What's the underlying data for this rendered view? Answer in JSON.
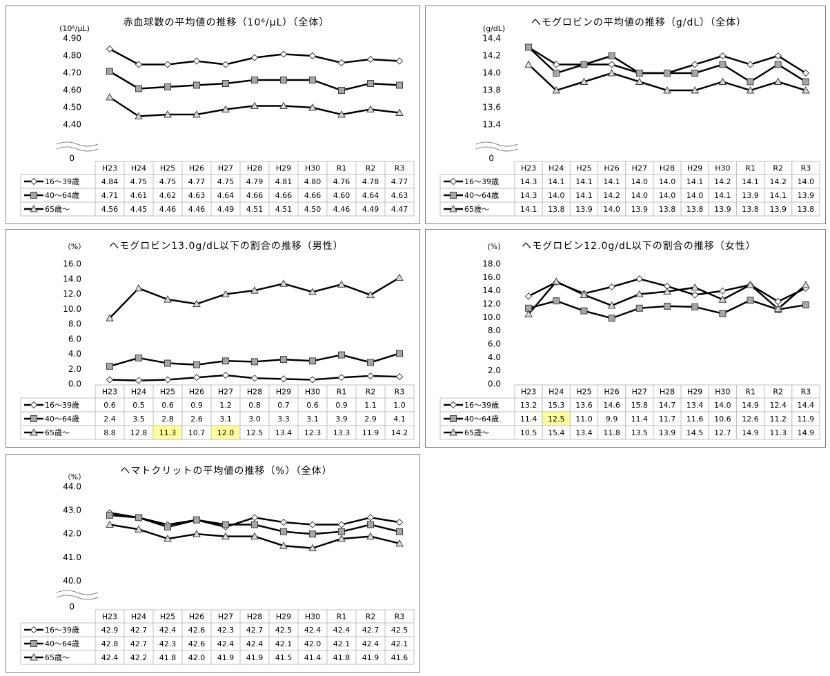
{
  "chart_data": [
    {
      "type": "line",
      "title": "赤血球数の平均値の推移（10⁶/μL）（全体）",
      "y_label": "(10⁶/μL)",
      "categories": [
        "H23",
        "H24",
        "H25",
        "H26",
        "H27",
        "H28",
        "H29",
        "H30",
        "R1",
        "R2",
        "R3"
      ],
      "ylim": [
        4.3,
        4.9
      ],
      "yticks": [
        {
          "value": 4.4,
          "label": "4.40"
        },
        {
          "value": 4.5,
          "label": "4.50"
        },
        {
          "value": 4.6,
          "label": "4.60"
        },
        {
          "value": 4.7,
          "label": "4.70"
        },
        {
          "value": 4.8,
          "label": "4.80"
        },
        {
          "value": 4.9,
          "label": "4.90"
        }
      ],
      "axis_break_tick": 0,
      "series": [
        {
          "name": "16～39歳",
          "color": "#000000",
          "marker": "diamond",
          "marker_fill": "#ffffff",
          "values": [
            4.84,
            4.75,
            4.75,
            4.77,
            4.75,
            4.79,
            4.81,
            4.8,
            4.76,
            4.78,
            4.77
          ],
          "value_labels": [
            "4.84",
            "4.75",
            "4.75",
            "4.77",
            "4.75",
            "4.79",
            "4.81",
            "4.80",
            "4.76",
            "4.78",
            "4.77"
          ]
        },
        {
          "name": "40～64歳",
          "color": "#000000",
          "marker": "square",
          "marker_fill": "#a6a6a6",
          "values": [
            4.71,
            4.61,
            4.62,
            4.63,
            4.64,
            4.66,
            4.66,
            4.66,
            4.6,
            4.64,
            4.63
          ],
          "value_labels": [
            "4.71",
            "4.61",
            "4.62",
            "4.63",
            "4.64",
            "4.66",
            "4.66",
            "4.66",
            "4.60",
            "4.64",
            "4.63"
          ]
        },
        {
          "name": "65歳～",
          "color": "#000000",
          "marker": "triangle",
          "marker_fill": "#d9d9d9",
          "values": [
            4.56,
            4.45,
            4.46,
            4.46,
            4.49,
            4.51,
            4.51,
            4.5,
            4.46,
            4.49,
            4.47
          ],
          "value_labels": [
            "4.56",
            "4.45",
            "4.46",
            "4.46",
            "4.49",
            "4.51",
            "4.51",
            "4.50",
            "4.46",
            "4.49",
            "4.47"
          ]
        }
      ]
    },
    {
      "type": "line",
      "title": "ヘモグロビンの平均値の推移（g/dL）（全体）",
      "y_label": "(g/dL)",
      "categories": [
        "H23",
        "H24",
        "H25",
        "H26",
        "H27",
        "H28",
        "H29",
        "H30",
        "R1",
        "R2",
        "R3"
      ],
      "ylim": [
        13.2,
        14.4
      ],
      "yticks": [
        13.4,
        13.6,
        13.8,
        {
          "value": 14,
          "label": "14.0"
        },
        14.2,
        14.4
      ],
      "axis_break_tick": 0,
      "series": [
        {
          "name": "16～39歳",
          "color": "#000000",
          "marker": "diamond",
          "marker_fill": "#ffffff",
          "values": [
            14.3,
            14.1,
            14.1,
            14.1,
            14,
            14,
            14.1,
            14.2,
            14.1,
            14.2,
            14
          ],
          "value_labels": [
            "14.3",
            "14.1",
            "14.1",
            "14.1",
            "14.0",
            "14.0",
            "14.1",
            "14.2",
            "14.1",
            "14.2",
            "14.0"
          ]
        },
        {
          "name": "40～64歳",
          "color": "#000000",
          "marker": "square",
          "marker_fill": "#a6a6a6",
          "values": [
            14.3,
            14,
            14.1,
            14.2,
            14,
            14,
            14,
            14.1,
            13.9,
            14.1,
            13.9
          ],
          "value_labels": [
            "14.3",
            "14.0",
            "14.1",
            "14.2",
            "14.0",
            "14.0",
            "14.0",
            "14.1",
            "13.9",
            "14.1",
            "13.9"
          ]
        },
        {
          "name": "65歳～",
          "color": "#000000",
          "marker": "triangle",
          "marker_fill": "#d9d9d9",
          "values": [
            14.1,
            13.8,
            13.9,
            14,
            13.9,
            13.8,
            13.8,
            13.9,
            13.8,
            13.9,
            13.8
          ],
          "value_labels": [
            "14.1",
            "13.8",
            "13.9",
            "14.0",
            "13.9",
            "13.8",
            "13.8",
            "13.9",
            "13.8",
            "13.9",
            "13.8"
          ]
        }
      ]
    },
    {
      "type": "line",
      "title": "ヘモグロビン13.0g/dL以下の割合の推移（男性）",
      "y_label": "（%）",
      "categories": [
        "H23",
        "H24",
        "H25",
        "H26",
        "H27",
        "H28",
        "H29",
        "H30",
        "R1",
        "R2",
        "R3"
      ],
      "ylim": [
        0,
        16
      ],
      "yticks": [
        {
          "value": 0,
          "label": "0.0"
        },
        {
          "value": 2,
          "label": "2.0"
        },
        {
          "value": 4,
          "label": "4.0"
        },
        {
          "value": 6,
          "label": "6.0"
        },
        {
          "value": 8,
          "label": "8.0"
        },
        {
          "value": 10,
          "label": "10.0"
        },
        {
          "value": 12,
          "label": "12.0"
        },
        {
          "value": 14,
          "label": "14.0"
        },
        {
          "value": 16,
          "label": "16.0"
        }
      ],
      "highlighted_cells": [
        [
          2,
          2
        ],
        [
          2,
          4
        ]
      ],
      "highlight_color": "#ffff99",
      "series": [
        {
          "name": "16～39歳",
          "color": "#000000",
          "marker": "diamond",
          "marker_fill": "#ffffff",
          "values": [
            0.6,
            0.5,
            0.6,
            0.9,
            1.2,
            0.8,
            0.7,
            0.6,
            0.9,
            1.1,
            1
          ],
          "value_labels": [
            "0.6",
            "0.5",
            "0.6",
            "0.9",
            "1.2",
            "0.8",
            "0.7",
            "0.6",
            "0.9",
            "1.1",
            "1.0"
          ]
        },
        {
          "name": "40～64歳",
          "color": "#000000",
          "marker": "square",
          "marker_fill": "#a6a6a6",
          "values": [
            2.4,
            3.5,
            2.8,
            2.6,
            3.1,
            3,
            3.3,
            3.1,
            3.9,
            2.9,
            4.1
          ],
          "value_labels": [
            "2.4",
            "3.5",
            "2.8",
            "2.6",
            "3.1",
            "3.0",
            "3.3",
            "3.1",
            "3.9",
            "2.9",
            "4.1"
          ]
        },
        {
          "name": "65歳～",
          "color": "#000000",
          "marker": "triangle",
          "marker_fill": "#d9d9d9",
          "values": [
            8.8,
            12.8,
            11.3,
            10.7,
            12,
            12.5,
            13.4,
            12.3,
            13.3,
            11.9,
            14.2
          ],
          "value_labels": [
            "8.8",
            "12.8",
            "11.3",
            "10.7",
            "12.0",
            "12.5",
            "13.4",
            "12.3",
            "13.3",
            "11.9",
            "14.2"
          ]
        }
      ]
    },
    {
      "type": "line",
      "title": "ヘモグロビン12.0g/dL以下の割合の推移（女性）",
      "y_label": "(%)",
      "categories": [
        "H23",
        "H24",
        "H25",
        "H26",
        "H27",
        "H28",
        "H29",
        "H30",
        "R1",
        "R2",
        "R3"
      ],
      "ylim": [
        0,
        18
      ],
      "yticks": [
        {
          "value": 0,
          "label": "0.0"
        },
        {
          "value": 2,
          "label": "2.0"
        },
        {
          "value": 4,
          "label": "4.0"
        },
        {
          "value": 6,
          "label": "6.0"
        },
        {
          "value": 8,
          "label": "8.0"
        },
        {
          "value": 10,
          "label": "10.0"
        },
        {
          "value": 12,
          "label": "12.0"
        },
        {
          "value": 14,
          "label": "14.0"
        },
        {
          "value": 16,
          "label": "16.0"
        },
        {
          "value": 18,
          "label": "18.0"
        }
      ],
      "highlighted_cells": [
        [
          1,
          1
        ]
      ],
      "highlight_color": "#ffff99",
      "series": [
        {
          "name": "16～39歳",
          "color": "#000000",
          "marker": "diamond",
          "marker_fill": "#ffffff",
          "values": [
            13.2,
            15.3,
            13.6,
            14.6,
            15.8,
            14.7,
            13.4,
            14,
            14.9,
            12.4,
            14.4
          ],
          "value_labels": [
            "13.2",
            "15.3",
            "13.6",
            "14.6",
            "15.8",
            "14.7",
            "13.4",
            "14.0",
            "14.9",
            "12.4",
            "14.4"
          ]
        },
        {
          "name": "40～64歳",
          "color": "#000000",
          "marker": "square",
          "marker_fill": "#a6a6a6",
          "values": [
            11.4,
            12.5,
            11,
            9.9,
            11.4,
            11.7,
            11.6,
            10.6,
            12.6,
            11.2,
            11.9
          ],
          "value_labels": [
            "11.4",
            "12.5",
            "11.0",
            "9.9",
            "11.4",
            "11.7",
            "11.6",
            "10.6",
            "12.6",
            "11.2",
            "11.9"
          ]
        },
        {
          "name": "65歳～",
          "color": "#000000",
          "marker": "triangle",
          "marker_fill": "#d9d9d9",
          "values": [
            10.5,
            15.4,
            13.4,
            11.8,
            13.5,
            13.9,
            14.5,
            12.7,
            14.9,
            11.3,
            14.9
          ],
          "value_labels": [
            "10.5",
            "15.4",
            "13.4",
            "11.8",
            "13.5",
            "13.9",
            "14.5",
            "12.7",
            "14.9",
            "11.3",
            "14.9"
          ]
        }
      ]
    },
    {
      "type": "line",
      "title": "ヘマトクリットの平均値の推移（%）（全体）",
      "y_label": "（%）",
      "categories": [
        "H23",
        "H24",
        "H25",
        "H26",
        "H27",
        "H28",
        "H29",
        "H30",
        "R1",
        "R2",
        "R3"
      ],
      "ylim": [
        39.6,
        44
      ],
      "yticks": [
        {
          "value": 40,
          "label": "40.0"
        },
        {
          "value": 41,
          "label": "41.0"
        },
        {
          "value": 42,
          "label": "42.0"
        },
        {
          "value": 43,
          "label": "43.0"
        },
        {
          "value": 44,
          "label": "44.0"
        }
      ],
      "axis_break_tick": 0,
      "series": [
        {
          "name": "16～39歳",
          "color": "#000000",
          "marker": "diamond",
          "marker_fill": "#ffffff",
          "values": [
            42.9,
            42.7,
            42.4,
            42.6,
            42.3,
            42.7,
            42.5,
            42.4,
            42.4,
            42.7,
            42.5
          ],
          "value_labels": [
            "42.9",
            "42.7",
            "42.4",
            "42.6",
            "42.3",
            "42.7",
            "42.5",
            "42.4",
            "42.4",
            "42.7",
            "42.5"
          ]
        },
        {
          "name": "40～64歳",
          "color": "#000000",
          "marker": "square",
          "marker_fill": "#a6a6a6",
          "values": [
            42.8,
            42.7,
            42.3,
            42.6,
            42.4,
            42.4,
            42.1,
            42,
            42.1,
            42.4,
            42.1
          ],
          "value_labels": [
            "42.8",
            "42.7",
            "42.3",
            "42.6",
            "42.4",
            "42.4",
            "42.1",
            "42.0",
            "42.1",
            "42.4",
            "42.1"
          ]
        },
        {
          "name": "65歳～",
          "color": "#000000",
          "marker": "triangle",
          "marker_fill": "#d9d9d9",
          "values": [
            42.4,
            42.2,
            41.8,
            42,
            41.9,
            41.9,
            41.5,
            41.4,
            41.8,
            41.9,
            41.6
          ],
          "value_labels": [
            "42.4",
            "42.2",
            "41.8",
            "42.0",
            "41.9",
            "41.9",
            "41.5",
            "41.4",
            "41.8",
            "41.9",
            "41.6"
          ]
        }
      ]
    }
  ]
}
